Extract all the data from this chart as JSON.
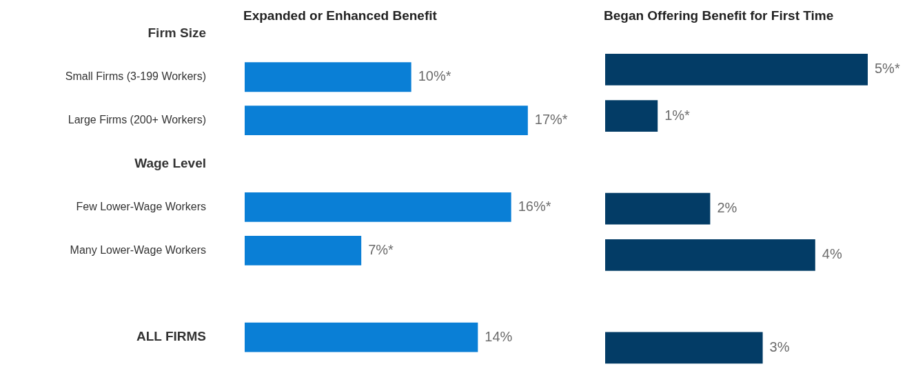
{
  "chart_data": [
    {
      "type": "bar",
      "orientation": "horizontal",
      "title": "Expanded or Enhanced Benefit",
      "categories": [
        "Firm Size",
        "Small Firms (3-199 Workers)",
        "Large Firms (200+ Workers)",
        "Wage Level",
        "Few Lower-Wage Workers",
        "Many Lower-Wage Workers",
        null,
        "ALL FIRMS"
      ],
      "values": [
        null,
        10,
        17,
        null,
        16,
        7,
        null,
        14
      ],
      "value_labels": [
        null,
        "10%*",
        "17%*",
        null,
        "16%*",
        "7%*",
        null,
        "14%"
      ],
      "color": "#0a7fd6",
      "legend": false,
      "tick_labels": "y"
    },
    {
      "type": "bar",
      "orientation": "horizontal",
      "title": "Began Offering Benefit for First Time",
      "categories": [
        null,
        null,
        null,
        null,
        null,
        null,
        null,
        null
      ],
      "values": [
        null,
        5,
        1,
        null,
        2,
        4,
        null,
        3
      ],
      "value_labels": [
        null,
        "5%*",
        "1%*",
        null,
        "2%",
        "4%",
        null,
        "3%"
      ],
      "color": "#033c66",
      "legend": false,
      "tick_labels": false
    }
  ]
}
